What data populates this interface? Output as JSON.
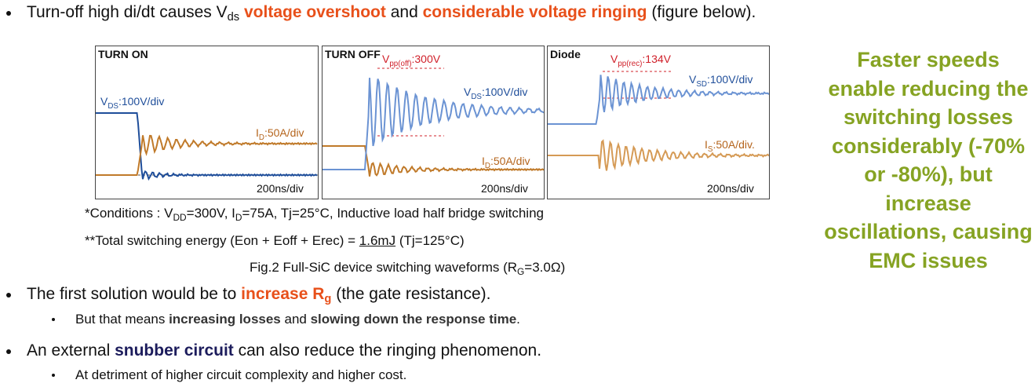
{
  "bullets": [
    {
      "segments": [
        "Turn-off high di/dt causes V",
        "ds",
        "voltage overshoot",
        " and ",
        "considerable voltage ringing",
        " (figure below)."
      ]
    },
    {
      "segments": [
        "The first solution would be to ",
        "increase R",
        "g",
        " (the gate resistance)."
      ],
      "sub": [
        "But that means ",
        "increasing losses",
        " and ",
        "slowing down the response time",
        "."
      ]
    },
    {
      "segments": [
        "An external ",
        "snubber circuit",
        " can also reduce the ringing phenomenon."
      ],
      "sub": [
        "At detriment of higher circuit complexity and higher cost."
      ]
    }
  ],
  "figure": {
    "panels": [
      {
        "title": "TURN ON",
        "v": [
          "V",
          "DS",
          ":100V/div"
        ],
        "i": [
          "I",
          "D",
          ":50A/div"
        ],
        "time": "200ns/div"
      },
      {
        "title": "TURN OFF",
        "vpp": [
          "V",
          "pp(off)",
          ":300V"
        ],
        "v": [
          "V",
          "DS",
          ":100V/div"
        ],
        "i": [
          "I",
          "D",
          ":50A/div"
        ],
        "time": "200ns/div"
      },
      {
        "title": "Diode",
        "vpp": [
          "V",
          "pp(rec)",
          ":134V"
        ],
        "v": [
          "V",
          "SD",
          ":100V/div"
        ],
        "i": [
          "I",
          "S",
          ":50A/div."
        ],
        "time": "200ns/div"
      }
    ],
    "conditions": [
      "*Conditions : V",
      "DD",
      "=300V, I",
      "D",
      "=75A, Tj=25°C, Inductive load half bridge switching"
    ],
    "energy": [
      "**Total switching energy (Eon + Eoff + Erec) = ",
      "1.6mJ",
      " (Tj=125°C)"
    ],
    "caption": [
      "Fig.2 Full-SiC device switching waveforms (R",
      "G",
      "=3.0Ω)"
    ]
  },
  "side_note": "Faster speeds enable reducing the switching losses considerably (-70% or -80%), but increase oscillations, causing EMC issues"
}
